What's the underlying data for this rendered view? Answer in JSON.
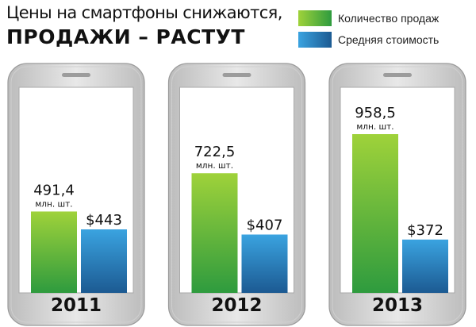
{
  "chart_data": {
    "type": "bar",
    "subtitle": "Цены на смартфоны снижаются,",
    "title": "ПРОДАЖИ – РАСТУТ",
    "categories": [
      "2011",
      "2012",
      "2013"
    ],
    "series": [
      {
        "name": "Количество продаж",
        "values": [
          491.4,
          722.5,
          958.5
        ],
        "labels": [
          "491,4",
          "722,5",
          "958,5"
        ],
        "unit_label": "млн. шт.",
        "color_top": "#9fd23a",
        "color_bottom": "#2e9b3e"
      },
      {
        "name": "Средняя стоимость",
        "values": [
          443,
          407,
          372
        ],
        "labels": [
          "$443",
          "$407",
          "$372"
        ],
        "color_top": "#3aa3e0",
        "color_bottom": "#1c5a92"
      }
    ],
    "legend_position": "top-right",
    "grid": false
  }
}
